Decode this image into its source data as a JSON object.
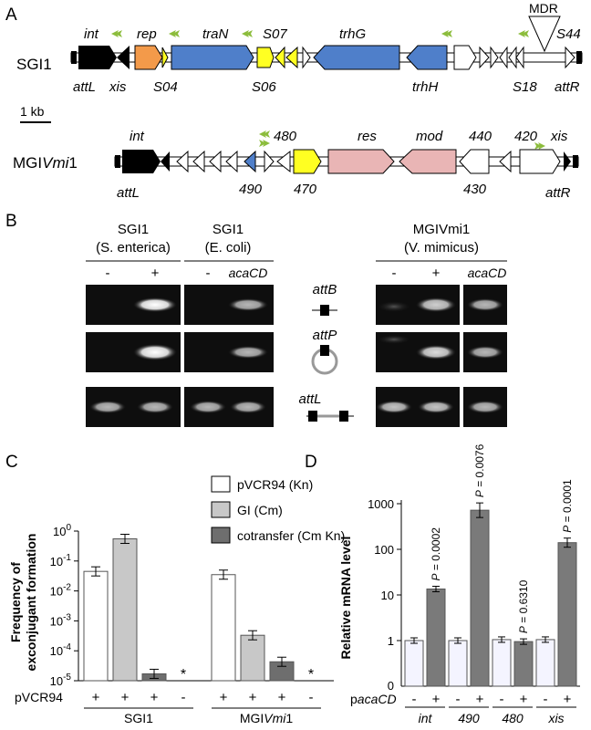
{
  "panelA": {
    "label": "A",
    "sgi1": {
      "name": "SGI1",
      "genes": {
        "int": "int",
        "rep": "rep",
        "traN": "traN",
        "S07": "S07",
        "trhG": "trhG",
        "MDR": "MDR",
        "S44": "S44",
        "attL": "attL",
        "xis": "xis",
        "S04": "S04",
        "S06": "S06",
        "trhH": "trhH",
        "S18": "S18",
        "attR": "attR"
      }
    },
    "scale": "1 kb",
    "mgi": {
      "name_prefix": "MGI",
      "name_italic": "Vmi",
      "name_suffix": "1",
      "genes": {
        "int": "int",
        "g480": "480",
        "res": "res",
        "mod": "mod",
        "g440": "440",
        "g420": "420",
        "xis": "xis",
        "attL": "attL",
        "g490": "490",
        "g470": "470",
        "g430": "430",
        "attR": "attR"
      }
    }
  },
  "panelB": {
    "label": "B",
    "groups": [
      {
        "title": "SGI1",
        "host": "(S. enterica)",
        "lanes": [
          "-",
          "+"
        ]
      },
      {
        "title": "SGI1",
        "host": "(E. coli)",
        "lanes": [
          "-",
          "acaCD"
        ]
      },
      {
        "title": "MGIVmi1",
        "host": "(V. mimicus)",
        "lanes": [
          "-",
          "+",
          "acaCD"
        ]
      }
    ],
    "rows": [
      "attB",
      "attP",
      "attL"
    ]
  },
  "panelC": {
    "label": "C",
    "ylabel": "Frequency of exconjugant formation",
    "legend": [
      "pVCR94 (Kn)",
      "GI (Cm)",
      "cotransfer (Cm Kn)"
    ],
    "row_label": "pVCR94",
    "lane_signs": [
      "+",
      "+",
      "+",
      "-",
      "+",
      "+",
      "+",
      "-"
    ],
    "groups": [
      "SGI1",
      "MGIVmi1"
    ],
    "star": "*",
    "chart_data": {
      "type": "bar",
      "yscale": "log",
      "ylim": [
        1e-05,
        1
      ],
      "series": [
        {
          "name": "pVCR94 (Kn)",
          "values": [
            0.045,
            0.035
          ]
        },
        {
          "name": "GI (Cm)",
          "values": [
            0.55,
            0.00033
          ]
        },
        {
          "name": "cotransfer (Cm Kn)",
          "values": [
            1.7e-05,
            4.3e-05
          ]
        }
      ],
      "categories": [
        "SGI1",
        "MGIVmi1"
      ]
    },
    "colors": {
      "pVCR94": "#ffffff",
      "GI": "#c8c8c8",
      "cotransfer": "#6e6e6e"
    }
  },
  "panelD": {
    "label": "D",
    "ylabel": "Relative mRNA level",
    "row_label": "pacaCD",
    "chart_data": {
      "type": "bar",
      "yscale": "log",
      "ylim": [
        0.1,
        1000
      ],
      "categories": [
        "int",
        "490",
        "480",
        "xis"
      ],
      "series": [
        {
          "name": "-",
          "values": [
            1.0,
            1.0,
            1.05,
            1.05
          ]
        },
        {
          "name": "+",
          "values": [
            13.5,
            720,
            0.95,
            140
          ]
        }
      ],
      "pvalues": [
        "P = 0.0002",
        "P = 0.0076",
        "P = 0.6310",
        "P = 0.0001"
      ]
    },
    "lane_signs": [
      "-",
      "+",
      "-",
      "+",
      "-",
      "+",
      "-",
      "+"
    ]
  }
}
